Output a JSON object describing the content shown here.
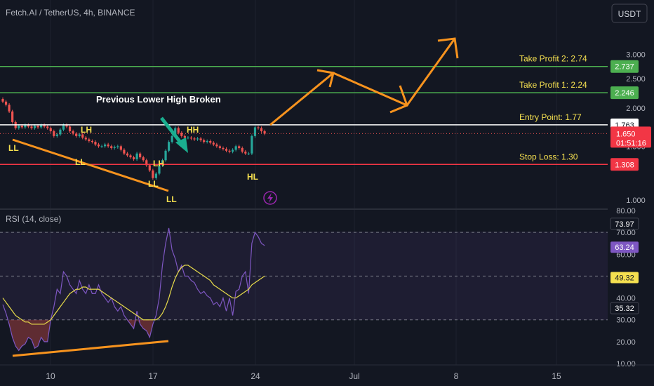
{
  "header": {
    "symbol_title": "Fetch.AI / TetherUS, 4h, BINANCE",
    "currency_button": "USDT"
  },
  "colors": {
    "background": "#131722",
    "grid": "#1e222d",
    "axis_text": "#b2b5be",
    "up_candle": "#26a69a",
    "down_candle": "#ef5350",
    "take_profit_line": "#4caf50",
    "stop_loss_line": "#f23645",
    "entry_line": "#ffffff",
    "annotation_yellow": "#f5e050",
    "orange": "#f7931e",
    "teal_arrow": "#1aae8f",
    "rsi_line": "#7e57c2",
    "rsi_ma": "#e8dc4a"
  },
  "chart_data": [
    {
      "type": "candlestick",
      "title": "Fetch.AI / TetherUS, 4h, BINANCE",
      "y_scale": "log",
      "ylim": [
        0.9,
        3.3
      ],
      "y_ticks": [
        "1.000",
        "1.500",
        "2.000",
        "2.500",
        "2.737",
        "3.000"
      ],
      "x_ticks": [
        "10",
        "17",
        "24",
        "Jul",
        "8",
        "15"
      ],
      "current_price": 1.65,
      "countdown": "01:51:16",
      "closes": [
        2.1,
        2.05,
        1.95,
        1.8,
        1.72,
        1.75,
        1.73,
        1.76,
        1.74,
        1.72,
        1.75,
        1.73,
        1.76,
        1.74,
        1.72,
        1.68,
        1.62,
        1.64,
        1.7,
        1.76,
        1.74,
        1.68,
        1.65,
        1.62,
        1.64,
        1.6,
        1.58,
        1.56,
        1.55,
        1.52,
        1.5,
        1.5,
        1.52,
        1.5,
        1.48,
        1.49,
        1.5,
        1.46,
        1.42,
        1.4,
        1.38,
        1.36,
        1.42,
        1.38,
        1.35,
        1.3,
        1.25,
        1.18,
        1.22,
        1.3,
        1.35,
        1.45,
        1.55,
        1.62,
        1.72,
        1.66,
        1.62,
        1.6,
        1.6,
        1.59,
        1.58,
        1.59,
        1.57,
        1.55,
        1.56,
        1.54,
        1.52,
        1.5,
        1.48,
        1.47,
        1.45,
        1.44,
        1.46,
        1.5,
        1.48,
        1.44,
        1.42,
        1.42,
        1.62,
        1.73,
        1.72,
        1.68,
        1.65
      ],
      "levels": [
        {
          "label": "Take Profit 2: 2.74",
          "price": 2.737,
          "tag": "2.737"
        },
        {
          "label": "Take Profit 1: 2.24",
          "price": 2.246,
          "tag": "2.246"
        },
        {
          "label": "Entry Point: 1.77",
          "price": 1.763,
          "tag": "1.763"
        },
        {
          "label": "Stop Loss: 1.30",
          "price": 1.308,
          "tag": "1.308"
        }
      ],
      "annotations": [
        "Previous Lower High Broken",
        "LL",
        "LH",
        "LL",
        "LH",
        "LL",
        "LL",
        "HH",
        "HL"
      ]
    },
    {
      "type": "line",
      "title": "RSI (14, close)",
      "ylim": [
        10,
        80
      ],
      "y_ticks": [
        "80.00",
        "70.00",
        "60.00",
        "50.00",
        "40.00",
        "30.00",
        "20.00",
        "10.00"
      ],
      "reference_lines": [
        70,
        50,
        30
      ],
      "rsi": [
        37,
        33,
        28,
        22,
        18,
        16,
        18,
        19,
        22,
        21,
        17,
        18,
        22,
        20,
        20,
        30,
        36,
        44,
        42,
        52,
        50,
        46,
        44,
        42,
        48,
        44,
        42,
        46,
        42,
        42,
        46,
        42,
        40,
        38,
        40,
        36,
        34,
        36,
        32,
        30,
        28,
        26,
        34,
        28,
        26,
        25,
        22,
        28,
        32,
        40,
        55,
        65,
        72,
        62,
        58,
        52,
        55,
        50,
        50,
        48,
        47,
        44,
        42,
        43,
        41,
        40,
        37,
        38,
        36,
        40,
        34,
        40,
        32,
        43,
        44,
        50,
        52,
        42,
        65,
        70,
        68,
        65,
        64
      ],
      "rsi_ma": [
        40,
        38,
        36,
        34,
        32,
        31,
        30,
        29,
        29,
        28,
        28,
        28,
        28,
        28,
        29,
        30,
        32,
        34,
        36,
        38,
        40,
        42,
        43,
        44,
        44,
        45,
        45,
        44,
        44,
        44,
        44,
        43,
        42,
        41,
        40,
        39,
        38,
        37,
        36,
        35,
        34,
        33,
        32,
        31,
        30,
        30,
        30,
        30,
        30,
        31,
        33,
        36,
        40,
        45,
        49,
        52,
        54,
        55,
        55,
        54,
        53,
        52,
        51,
        50,
        49,
        48,
        46,
        45,
        44,
        43,
        42,
        41,
        40,
        40,
        41,
        42,
        43,
        44,
        46,
        47,
        48,
        49,
        50
      ],
      "values_shown": {
        "upper_marker": "73.97",
        "rsi_value": "63.24",
        "ma_value": "49.32",
        "lower_marker": "35.32"
      }
    }
  ]
}
